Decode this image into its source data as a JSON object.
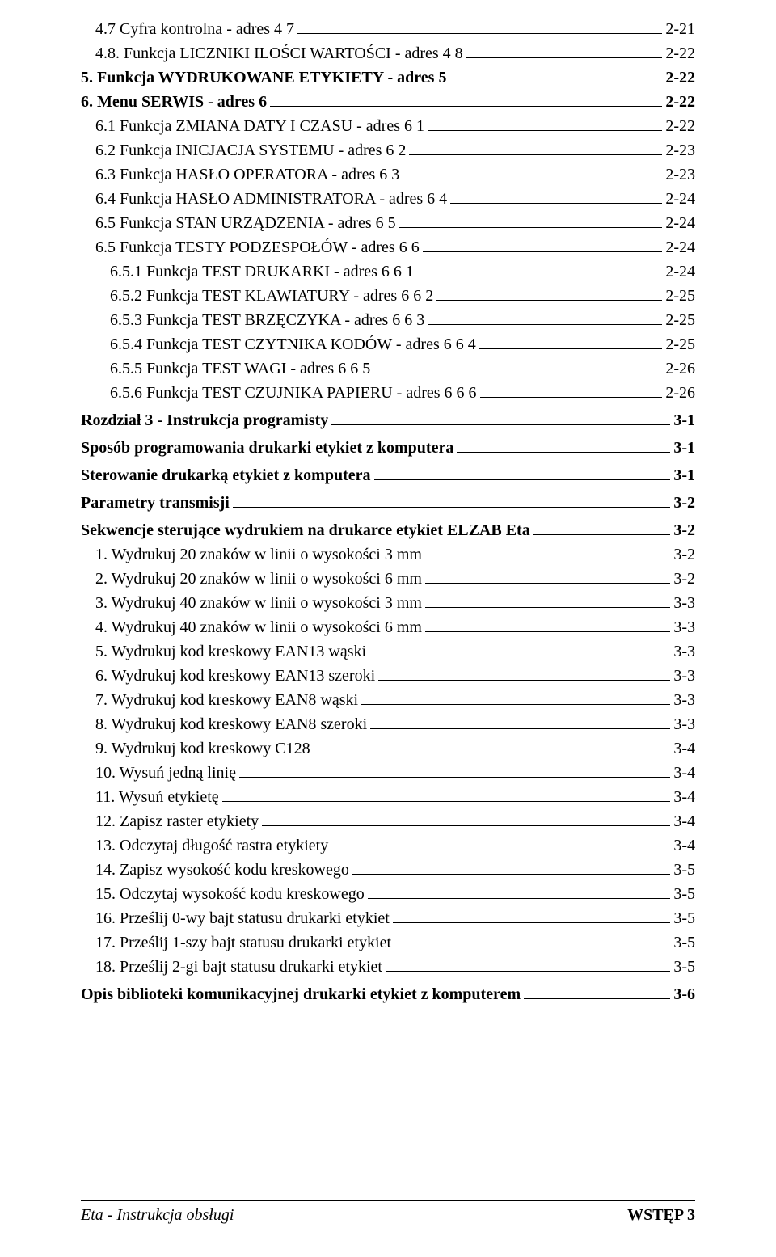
{
  "toc": [
    {
      "label": "4.7 Cyfra kontrolna - adres 4 7",
      "page": "2-21",
      "indent": 1
    },
    {
      "label": "4.8. Funkcja LICZNIKI ILOŚCI WARTOŚCI - adres 4 8",
      "page": "2-22",
      "indent": 1
    },
    {
      "label": "5. Funkcja WYDRUKOWANE ETYKIETY - adres 5",
      "page": "2-22",
      "indent": 0,
      "bold": true
    },
    {
      "label": "6. Menu SERWIS - adres 6",
      "page": "2-22",
      "indent": 0,
      "bold": true
    },
    {
      "label": "6.1 Funkcja ZMIANA DATY I CZASU - adres 6 1",
      "page": "2-22",
      "indent": 1
    },
    {
      "label": "6.2 Funkcja INICJACJA SYSTEMU - adres 6 2",
      "page": "2-23",
      "indent": 1
    },
    {
      "label": "6.3 Funkcja HASŁO OPERATORA - adres 6 3",
      "page": "2-23",
      "indent": 1
    },
    {
      "label": "6.4 Funkcja HASŁO ADMINISTRATORA - adres 6 4",
      "page": "2-24",
      "indent": 1
    },
    {
      "label": "6.5 Funkcja STAN URZĄDZENIA - adres 6 5",
      "page": "2-24",
      "indent": 1
    },
    {
      "label": "6.5 Funkcja TESTY PODZESPOŁÓW - adres 6 6",
      "page": "2-24",
      "indent": 1
    },
    {
      "label": "6.5.1 Funkcja TEST DRUKARKI - adres 6 6 1",
      "page": "2-24",
      "indent": 2
    },
    {
      "label": "6.5.2 Funkcja TEST KLAWIATURY - adres 6 6 2",
      "page": "2-25",
      "indent": 2
    },
    {
      "label": "6.5.3 Funkcja TEST BRZĘCZYKA - adres 6 6 3",
      "page": "2-25",
      "indent": 2
    },
    {
      "label": "6.5.4 Funkcja TEST CZYTNIKA KODÓW - adres 6 6 4",
      "page": "2-25",
      "indent": 2
    },
    {
      "label": "6.5.5 Funkcja TEST WAGI - adres 6 6 5",
      "page": "2-26",
      "indent": 2
    },
    {
      "label": "6.5.6 Funkcja TEST CZUJNIKA PAPIERU - adres 6 6 6",
      "page": "2-26",
      "indent": 2
    },
    {
      "label": "Rozdział 3 - Instrukcja programisty",
      "page": "3-1",
      "indent": 0,
      "section": true
    },
    {
      "label": "Sposób programowania drukarki etykiet z komputera",
      "page": "3-1",
      "indent": 0,
      "section": true
    },
    {
      "label": "Sterowanie drukarką etykiet z komputera",
      "page": "3-1",
      "indent": 0,
      "section": true
    },
    {
      "label": "Parametry transmisji",
      "page": "3-2",
      "indent": 0,
      "section": true
    },
    {
      "label": "Sekwencje sterujące wydrukiem na drukarce etykiet ELZAB Eta",
      "page": "3-2",
      "indent": 0,
      "section": true
    },
    {
      "label": "1. Wydrukuj 20 znaków w linii o wysokości 3 mm",
      "page": "3-2",
      "indent": 1
    },
    {
      "label": "2. Wydrukuj 20 znaków w linii o wysokości 6 mm",
      "page": "3-2",
      "indent": 1
    },
    {
      "label": "3. Wydrukuj 40 znaków w linii o wysokości 3 mm",
      "page": "3-3",
      "indent": 1
    },
    {
      "label": "4. Wydrukuj 40 znaków w linii o wysokości 6 mm",
      "page": "3-3",
      "indent": 1
    },
    {
      "label": "5. Wydrukuj kod kreskowy EAN13 wąski",
      "page": "3-3",
      "indent": 1
    },
    {
      "label": "6. Wydrukuj kod kreskowy EAN13 szeroki",
      "page": "3-3",
      "indent": 1
    },
    {
      "label": "7. Wydrukuj kod kreskowy EAN8 wąski",
      "page": "3-3",
      "indent": 1
    },
    {
      "label": "8. Wydrukuj kod kreskowy EAN8 szeroki",
      "page": "3-3",
      "indent": 1
    },
    {
      "label": "9. Wydrukuj kod kreskowy C128",
      "page": "3-4",
      "indent": 1
    },
    {
      "label": "10. Wysuń jedną linię",
      "page": "3-4",
      "indent": 1
    },
    {
      "label": "11. Wysuń etykietę",
      "page": "3-4",
      "indent": 1
    },
    {
      "label": "12. Zapisz raster etykiety",
      "page": "3-4",
      "indent": 1
    },
    {
      "label": "13. Odczytaj długość rastra etykiety",
      "page": "3-4",
      "indent": 1
    },
    {
      "label": "14. Zapisz wysokość kodu kreskowego",
      "page": "3-5",
      "indent": 1
    },
    {
      "label": "15. Odczytaj wysokość kodu kreskowego",
      "page": "3-5",
      "indent": 1
    },
    {
      "label": "16. Prześlij 0-wy bajt statusu drukarki etykiet",
      "page": "3-5",
      "indent": 1
    },
    {
      "label": "17. Prześlij 1-szy bajt statusu drukarki etykiet",
      "page": "3-5",
      "indent": 1
    },
    {
      "label": "18. Prześlij 2-gi bajt statusu drukarki etykiet",
      "page": "3-5",
      "indent": 1
    },
    {
      "label": "Opis biblioteki komunikacyjnej drukarki etykiet z komputerem",
      "page": "3-6",
      "indent": 0,
      "section": true
    }
  ],
  "footer": {
    "left": "Eta - Instrukcja obsługi",
    "right": "WSTĘP  3"
  }
}
